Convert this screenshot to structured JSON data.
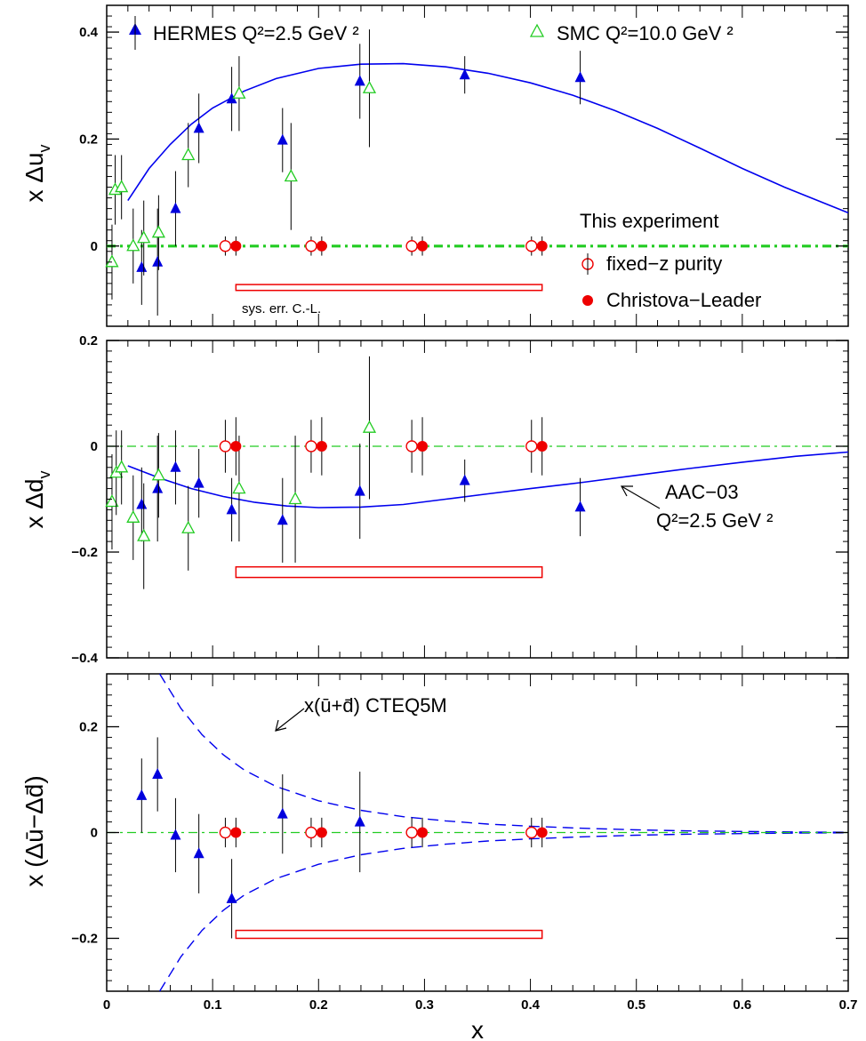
{
  "chart_data": [
    {
      "type": "scatter",
      "panel": "top",
      "ylabel": "x Δu_v",
      "ylabel_main": "x Δu",
      "ylabel_sub": "v",
      "xlim": [
        0,
        0.7
      ],
      "ylim": [
        -0.15,
        0.45
      ],
      "yticks": [
        0,
        0.2,
        0.4
      ],
      "ytick_labels": [
        "0",
        "0.2",
        "0.4"
      ],
      "series": [
        {
          "name": "HERMES Q²=2.5 GeV ²",
          "marker": "filled-triangle",
          "color": "#0000dd",
          "points": [
            {
              "x": 0.033,
              "y": -0.04,
              "err": 0.07
            },
            {
              "x": 0.048,
              "y": -0.03,
              "err": 0.1
            },
            {
              "x": 0.065,
              "y": 0.07,
              "err": 0.07
            },
            {
              "x": 0.087,
              "y": 0.22,
              "err": 0.065
            },
            {
              "x": 0.118,
              "y": 0.275,
              "err": 0.06
            },
            {
              "x": 0.166,
              "y": 0.198,
              "err": 0.06
            },
            {
              "x": 0.239,
              "y": 0.308,
              "err": 0.07
            },
            {
              "x": 0.338,
              "y": 0.32,
              "err": 0.035
            },
            {
              "x": 0.447,
              "y": 0.315,
              "err": 0.05
            }
          ]
        },
        {
          "name": "SMC Q²=10.0 GeV ²",
          "marker": "open-triangle",
          "color": "#22cc22",
          "points": [
            {
              "x": 0.005,
              "y": -0.03,
              "err": 0.07
            },
            {
              "x": 0.008,
              "y": 0.105,
              "err": 0.065
            },
            {
              "x": 0.014,
              "y": 0.11,
              "err": 0.06
            },
            {
              "x": 0.025,
              "y": 0.0,
              "err": 0.07
            },
            {
              "x": 0.035,
              "y": 0.015,
              "err": 0.07
            },
            {
              "x": 0.049,
              "y": 0.025,
              "err": 0.07
            },
            {
              "x": 0.077,
              "y": 0.17,
              "err": 0.06
            },
            {
              "x": 0.125,
              "y": 0.285,
              "err": 0.07
            },
            {
              "x": 0.174,
              "y": 0.13,
              "err": 0.1
            },
            {
              "x": 0.248,
              "y": 0.295,
              "err": 0.11
            }
          ]
        },
        {
          "name": "fixed−z purity",
          "marker": "open-circle",
          "color": "#ee0000",
          "points": [
            {
              "x": 0.112,
              "y": 0.0,
              "err": 0.018
            },
            {
              "x": 0.193,
              "y": 0.0,
              "err": 0.018
            },
            {
              "x": 0.288,
              "y": 0.0,
              "err": 0.018
            },
            {
              "x": 0.401,
              "y": 0.0,
              "err": 0.018
            }
          ]
        },
        {
          "name": "Christova−Leader",
          "marker": "filled-circle",
          "color": "#ee0000",
          "points": [
            {
              "x": 0.122,
              "y": 0.0,
              "err": 0.018
            },
            {
              "x": 0.203,
              "y": 0.0,
              "err": 0.018
            },
            {
              "x": 0.298,
              "y": 0.0,
              "err": 0.018
            },
            {
              "x": 0.411,
              "y": 0.0,
              "err": 0.018
            }
          ]
        }
      ],
      "curves": [
        {
          "name": "AAC-03",
          "style": "solid",
          "color": "#0000ee",
          "x": [
            0.02,
            0.04,
            0.06,
            0.08,
            0.1,
            0.13,
            0.16,
            0.2,
            0.24,
            0.28,
            0.32,
            0.36,
            0.4,
            0.44,
            0.48,
            0.52,
            0.56,
            0.6,
            0.64,
            0.7
          ],
          "y": [
            0.085,
            0.145,
            0.19,
            0.228,
            0.258,
            0.29,
            0.313,
            0.332,
            0.34,
            0.341,
            0.335,
            0.323,
            0.305,
            0.282,
            0.253,
            0.22,
            0.183,
            0.145,
            0.11,
            0.062
          ]
        },
        {
          "name": "zero",
          "style": "dashdot-thick",
          "color": "#22cc22",
          "x": [
            0,
            0.7
          ],
          "y": [
            0,
            0
          ]
        }
      ],
      "sys_band": {
        "x": [
          0.122,
          0.411
        ],
        "y": [
          -0.083,
          -0.072
        ],
        "label": "sys. err. C.-L."
      },
      "legend_title": "This experiment"
    },
    {
      "type": "scatter",
      "panel": "middle",
      "ylabel": "x Δd_v",
      "ylabel_main": "x Δd",
      "ylabel_sub": "v",
      "xlim": [
        0,
        0.7
      ],
      "ylim": [
        -0.4,
        0.2
      ],
      "yticks": [
        -0.4,
        -0.2,
        0,
        0.2
      ],
      "ytick_labels": [
        "−0.4",
        "−0.2",
        "0",
        "0.2"
      ],
      "series": [
        {
          "name": "HERMES",
          "marker": "filled-triangle",
          "color": "#0000dd",
          "points": [
            {
              "x": 0.033,
              "y": -0.11,
              "err": 0.07
            },
            {
              "x": 0.048,
              "y": -0.08,
              "err": 0.1
            },
            {
              "x": 0.065,
              "y": -0.04,
              "err": 0.07
            },
            {
              "x": 0.087,
              "y": -0.07,
              "err": 0.065
            },
            {
              "x": 0.118,
              "y": -0.12,
              "err": 0.06
            },
            {
              "x": 0.166,
              "y": -0.14,
              "err": 0.08
            },
            {
              "x": 0.239,
              "y": -0.085,
              "err": 0.09
            },
            {
              "x": 0.338,
              "y": -0.065,
              "err": 0.04
            },
            {
              "x": 0.447,
              "y": -0.115,
              "err": 0.055
            }
          ]
        },
        {
          "name": "SMC",
          "marker": "open-triangle",
          "color": "#22cc22",
          "points": [
            {
              "x": 0.005,
              "y": -0.105,
              "err": 0.09
            },
            {
              "x": 0.009,
              "y": -0.05,
              "err": 0.08
            },
            {
              "x": 0.014,
              "y": -0.04,
              "err": 0.07
            },
            {
              "x": 0.025,
              "y": -0.135,
              "err": 0.08
            },
            {
              "x": 0.035,
              "y": -0.17,
              "err": 0.1
            },
            {
              "x": 0.049,
              "y": -0.055,
              "err": 0.08
            },
            {
              "x": 0.077,
              "y": -0.155,
              "err": 0.08
            },
            {
              "x": 0.125,
              "y": -0.08,
              "err": 0.1
            },
            {
              "x": 0.178,
              "y": -0.1,
              "err": 0.12
            },
            {
              "x": 0.248,
              "y": 0.035,
              "err": 0.135
            }
          ]
        },
        {
          "name": "fixed−z purity",
          "marker": "open-circle",
          "color": "#ee0000",
          "points": [
            {
              "x": 0.112,
              "y": 0.0,
              "err": 0.05
            },
            {
              "x": 0.193,
              "y": 0.0,
              "err": 0.05
            },
            {
              "x": 0.288,
              "y": 0.0,
              "err": 0.05
            },
            {
              "x": 0.401,
              "y": 0.0,
              "err": 0.05
            }
          ]
        },
        {
          "name": "Christova−Leader",
          "marker": "filled-circle",
          "color": "#ee0000",
          "points": [
            {
              "x": 0.122,
              "y": 0.0,
              "err": 0.055
            },
            {
              "x": 0.203,
              "y": 0.0,
              "err": 0.055
            },
            {
              "x": 0.298,
              "y": 0.0,
              "err": 0.055
            },
            {
              "x": 0.411,
              "y": 0.0,
              "err": 0.055
            }
          ]
        }
      ],
      "curves": [
        {
          "name": "AAC-03",
          "style": "solid",
          "color": "#0000ee",
          "x": [
            0.02,
            0.05,
            0.08,
            0.11,
            0.14,
            0.17,
            0.2,
            0.24,
            0.28,
            0.32,
            0.36,
            0.4,
            0.45,
            0.5,
            0.55,
            0.6,
            0.65,
            0.7
          ],
          "y": [
            -0.037,
            -0.06,
            -0.08,
            -0.095,
            -0.106,
            -0.113,
            -0.116,
            -0.115,
            -0.11,
            -0.1,
            -0.09,
            -0.08,
            -0.068,
            -0.055,
            -0.042,
            -0.03,
            -0.019,
            -0.011
          ]
        },
        {
          "name": "zero",
          "style": "dashdot-thin",
          "color": "#22cc22",
          "x": [
            0,
            0.7
          ],
          "y": [
            0,
            0
          ]
        }
      ],
      "sys_band": {
        "x": [
          0.122,
          0.411
        ],
        "y": [
          -0.248,
          -0.228
        ]
      },
      "annotation": {
        "lines": [
          "AAC−03",
          "Q²=2.5 GeV ²"
        ],
        "arrow_to": [
          0.48,
          -0.07
        ]
      }
    },
    {
      "type": "scatter",
      "panel": "bottom",
      "ylabel": "x (Δū−Δd̄)",
      "xlabel": "x",
      "xlim": [
        0,
        0.7
      ],
      "ylim": [
        -0.3,
        0.3
      ],
      "yticks": [
        -0.2,
        0,
        0.2
      ],
      "ytick_labels": [
        "−0.2",
        "0",
        "0.2"
      ],
      "xticks": [
        0,
        0.1,
        0.2,
        0.3,
        0.4,
        0.5,
        0.6,
        0.7
      ],
      "xtick_labels": [
        "0",
        "0.1",
        "0.2",
        "0.3",
        "0.4",
        "0.5",
        "0.6",
        "0.7"
      ],
      "series": [
        {
          "name": "HERMES",
          "marker": "filled-triangle",
          "color": "#0000dd",
          "points": [
            {
              "x": 0.033,
              "y": 0.07,
              "err": 0.07
            },
            {
              "x": 0.048,
              "y": 0.11,
              "err": 0.07
            },
            {
              "x": 0.065,
              "y": -0.005,
              "err": 0.07
            },
            {
              "x": 0.087,
              "y": -0.04,
              "err": 0.075
            },
            {
              "x": 0.118,
              "y": -0.125,
              "err": 0.075
            },
            {
              "x": 0.166,
              "y": 0.035,
              "err": 0.075
            },
            {
              "x": 0.239,
              "y": 0.02,
              "err": 0.095
            }
          ]
        },
        {
          "name": "fixed−z purity",
          "marker": "open-circle",
          "color": "#ee0000",
          "points": [
            {
              "x": 0.112,
              "y": 0.0,
              "err": 0.028
            },
            {
              "x": 0.193,
              "y": 0.0,
              "err": 0.028
            },
            {
              "x": 0.288,
              "y": 0.0,
              "err": 0.028
            },
            {
              "x": 0.401,
              "y": 0.0,
              "err": 0.028
            }
          ]
        },
        {
          "name": "Christova−Leader",
          "marker": "filled-circle",
          "color": "#ee0000",
          "points": [
            {
              "x": 0.122,
              "y": 0.0,
              "err": 0.028
            },
            {
              "x": 0.203,
              "y": 0.0,
              "err": 0.028
            },
            {
              "x": 0.298,
              "y": 0.0,
              "err": 0.028
            },
            {
              "x": 0.411,
              "y": 0.0,
              "err": 0.028
            }
          ]
        }
      ],
      "curves": [
        {
          "name": "CTEQ5M upper",
          "style": "dashed",
          "color": "#0000ee",
          "x": [
            0.05,
            0.07,
            0.09,
            0.11,
            0.13,
            0.16,
            0.2,
            0.24,
            0.28,
            0.32,
            0.36,
            0.4,
            0.45,
            0.5,
            0.55,
            0.6,
            0.65,
            0.7
          ],
          "y": [
            0.3,
            0.235,
            0.185,
            0.147,
            0.118,
            0.087,
            0.06,
            0.042,
            0.03,
            0.022,
            0.016,
            0.012,
            0.008,
            0.005,
            0.003,
            0.002,
            0.001,
            0.0005
          ]
        },
        {
          "name": "CTEQ5M lower",
          "style": "dashed",
          "color": "#0000ee",
          "x": [
            0.05,
            0.07,
            0.09,
            0.11,
            0.13,
            0.16,
            0.2,
            0.24,
            0.28,
            0.32,
            0.36,
            0.4,
            0.45,
            0.5,
            0.55,
            0.6,
            0.65,
            0.7
          ],
          "y": [
            -0.3,
            -0.235,
            -0.185,
            -0.147,
            -0.118,
            -0.087,
            -0.06,
            -0.042,
            -0.03,
            -0.022,
            -0.016,
            -0.012,
            -0.008,
            -0.005,
            -0.003,
            -0.002,
            -0.001,
            -0.0005
          ]
        },
        {
          "name": "zero",
          "style": "dashdot-thin",
          "color": "#22cc22",
          "x": [
            0,
            0.7
          ],
          "y": [
            0,
            0
          ]
        }
      ],
      "sys_band": {
        "x": [
          0.122,
          0.411
        ],
        "y": [
          -0.2,
          -0.185
        ]
      },
      "annotation": {
        "lines": [
          "x(ū+d̄) CTEQ5M"
        ],
        "arrow_to": [
          0.16,
          0.19
        ]
      }
    }
  ]
}
